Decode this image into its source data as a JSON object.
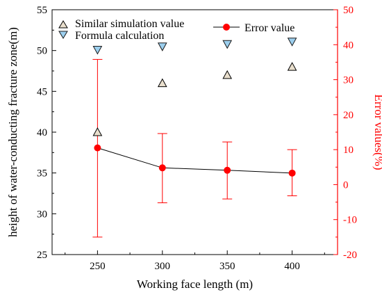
{
  "chart_data": {
    "type": "scatter",
    "xlabel": "Working face length (m)",
    "ylabel_left": "height of  water-conducting fracture zone(m)",
    "ylabel_right": "Error values(%)",
    "xlim": [
      215,
      435
    ],
    "ylim_left": [
      25,
      55
    ],
    "ylim_right": [
      -20,
      50
    ],
    "x_ticks": [
      250,
      300,
      350,
      400
    ],
    "y_left_ticks": [
      25,
      30,
      35,
      40,
      45,
      50,
      55
    ],
    "y_right_ticks": [
      -20,
      -10,
      0,
      10,
      20,
      30,
      40,
      50
    ],
    "grid": false,
    "legend_position": "top",
    "series": [
      {
        "name": "Similar simulation value",
        "axis": "left",
        "marker": "triangle-up",
        "color": "#000000",
        "fill": "#e9dfcd",
        "x": [
          250,
          300,
          350,
          400
        ],
        "y": [
          40,
          46,
          47,
          48
        ]
      },
      {
        "name": "Formula calculation",
        "axis": "left",
        "marker": "triangle-down",
        "color": "#1a1a1a",
        "fill": "#9ccfee",
        "x": [
          250,
          300,
          350,
          400
        ],
        "y": [
          50.1,
          50.5,
          50.8,
          51.1
        ]
      },
      {
        "name": "Error value",
        "axis": "right",
        "marker": "circle-line",
        "color": "#ff0000",
        "line_color": "#000000",
        "x": [
          250,
          300,
          350,
          400
        ],
        "y": [
          10.5,
          4.8,
          4.1,
          3.3
        ],
        "error_upper": [
          35.8,
          14.6,
          12.2,
          10.0
        ],
        "error_lower": [
          -15.0,
          -5.2,
          -4.1,
          -3.2
        ]
      }
    ]
  },
  "colors": {
    "right_axis": "#ff0000",
    "left_axis": "#000000"
  }
}
